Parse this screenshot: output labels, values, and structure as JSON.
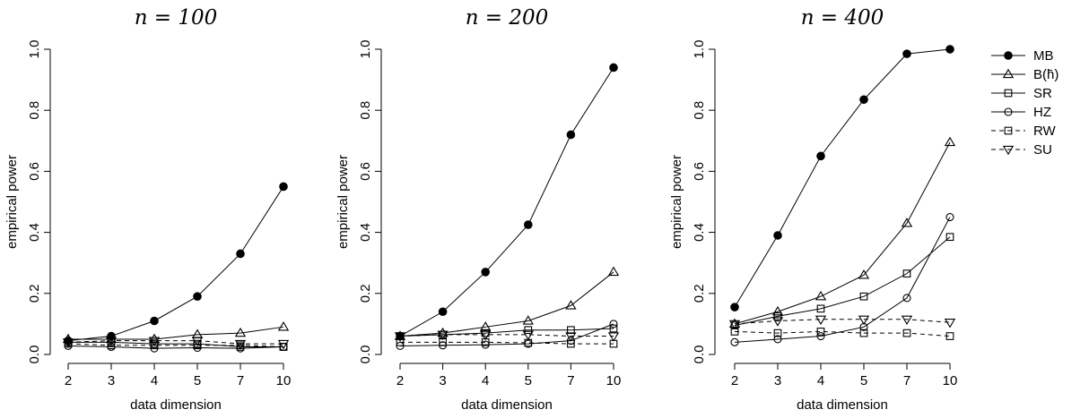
{
  "chart_data": [
    {
      "type": "line",
      "title": "n = 100",
      "xlabel": "data dimension",
      "ylabel": "empirical power",
      "categories": [
        "2",
        "3",
        "4",
        "5",
        "7",
        "10"
      ],
      "yticks": [
        "0.0",
        "0.2",
        "0.4",
        "0.6",
        "0.8",
        "1.0"
      ],
      "ylim": [
        0,
        1
      ],
      "series": [
        {
          "name": "MB",
          "marker": "filled-circle",
          "dashed": false,
          "values": [
            0.045,
            0.06,
            0.11,
            0.19,
            0.33,
            0.55
          ]
        },
        {
          "name": "B(h̄)",
          "marker": "triangle-up",
          "dashed": false,
          "values": [
            0.05,
            0.05,
            0.05,
            0.065,
            0.07,
            0.09
          ]
        },
        {
          "name": "SR",
          "marker": "square",
          "dashed": false,
          "values": [
            0.04,
            0.04,
            0.035,
            0.035,
            0.025,
            0.025
          ]
        },
        {
          "name": "HZ",
          "marker": "circle",
          "dashed": false,
          "values": [
            0.028,
            0.025,
            0.02,
            0.022,
            0.02,
            0.025
          ]
        },
        {
          "name": "RW",
          "marker": "square",
          "dashed": true,
          "values": [
            0.035,
            0.03,
            0.03,
            0.03,
            0.03,
            0.025
          ]
        },
        {
          "name": "SU",
          "marker": "triangle-down",
          "dashed": true,
          "values": [
            0.04,
            0.045,
            0.045,
            0.045,
            0.035,
            0.035
          ]
        }
      ]
    },
    {
      "type": "line",
      "title": "n = 200",
      "xlabel": "data dimension",
      "ylabel": "empirical power",
      "categories": [
        "2",
        "3",
        "4",
        "5",
        "7",
        "10"
      ],
      "yticks": [
        "0.0",
        "0.2",
        "0.4",
        "0.6",
        "0.8",
        "1.0"
      ],
      "ylim": [
        0,
        1
      ],
      "series": [
        {
          "name": "MB",
          "marker": "filled-circle",
          "dashed": false,
          "values": [
            0.06,
            0.14,
            0.27,
            0.425,
            0.72,
            0.94
          ]
        },
        {
          "name": "B(h̄)",
          "marker": "triangle-up",
          "dashed": false,
          "values": [
            0.06,
            0.07,
            0.09,
            0.11,
            0.16,
            0.27
          ]
        },
        {
          "name": "SR",
          "marker": "square",
          "dashed": false,
          "values": [
            0.06,
            0.065,
            0.07,
            0.08,
            0.08,
            0.085
          ]
        },
        {
          "name": "HZ",
          "marker": "circle",
          "dashed": false,
          "values": [
            0.028,
            0.03,
            0.032,
            0.035,
            0.045,
            0.1
          ]
        },
        {
          "name": "RW",
          "marker": "square",
          "dashed": true,
          "values": [
            0.04,
            0.04,
            0.04,
            0.038,
            0.035,
            0.035
          ]
        },
        {
          "name": "SU",
          "marker": "triangle-down",
          "dashed": true,
          "values": [
            0.06,
            0.065,
            0.065,
            0.065,
            0.06,
            0.06
          ]
        }
      ]
    },
    {
      "type": "line",
      "title": "n = 400",
      "xlabel": "data dimension",
      "ylabel": "empirical power",
      "categories": [
        "2",
        "3",
        "4",
        "5",
        "7",
        "10"
      ],
      "yticks": [
        "0.0",
        "0.2",
        "0.4",
        "0.6",
        "0.8",
        "1.0"
      ],
      "ylim": [
        0,
        1
      ],
      "series": [
        {
          "name": "MB",
          "marker": "filled-circle",
          "dashed": false,
          "values": [
            0.155,
            0.39,
            0.65,
            0.835,
            0.985,
            1.0
          ]
        },
        {
          "name": "B(h̄)",
          "marker": "triangle-up",
          "dashed": false,
          "values": [
            0.1,
            0.14,
            0.19,
            0.26,
            0.43,
            0.695
          ]
        },
        {
          "name": "SR",
          "marker": "square",
          "dashed": false,
          "values": [
            0.095,
            0.125,
            0.15,
            0.19,
            0.265,
            0.385
          ]
        },
        {
          "name": "HZ",
          "marker": "circle",
          "dashed": false,
          "values": [
            0.04,
            0.05,
            0.06,
            0.09,
            0.185,
            0.45
          ]
        },
        {
          "name": "RW",
          "marker": "square",
          "dashed": true,
          "values": [
            0.075,
            0.07,
            0.075,
            0.07,
            0.07,
            0.06
          ]
        },
        {
          "name": "SU",
          "marker": "triangle-down",
          "dashed": true,
          "values": [
            0.1,
            0.11,
            0.115,
            0.115,
            0.115,
            0.105
          ]
        }
      ]
    }
  ],
  "legend": {
    "placement": "right",
    "entries": [
      {
        "label": "MB",
        "marker": "filled-circle",
        "dashed": false
      },
      {
        "label": "B(h̄)",
        "marker": "triangle-up",
        "dashed": false
      },
      {
        "label": "SR",
        "marker": "square",
        "dashed": false
      },
      {
        "label": "HZ",
        "marker": "circle",
        "dashed": false
      },
      {
        "label": "RW",
        "marker": "square",
        "dashed": true
      },
      {
        "label": "SU",
        "marker": "triangle-down",
        "dashed": true
      }
    ]
  }
}
